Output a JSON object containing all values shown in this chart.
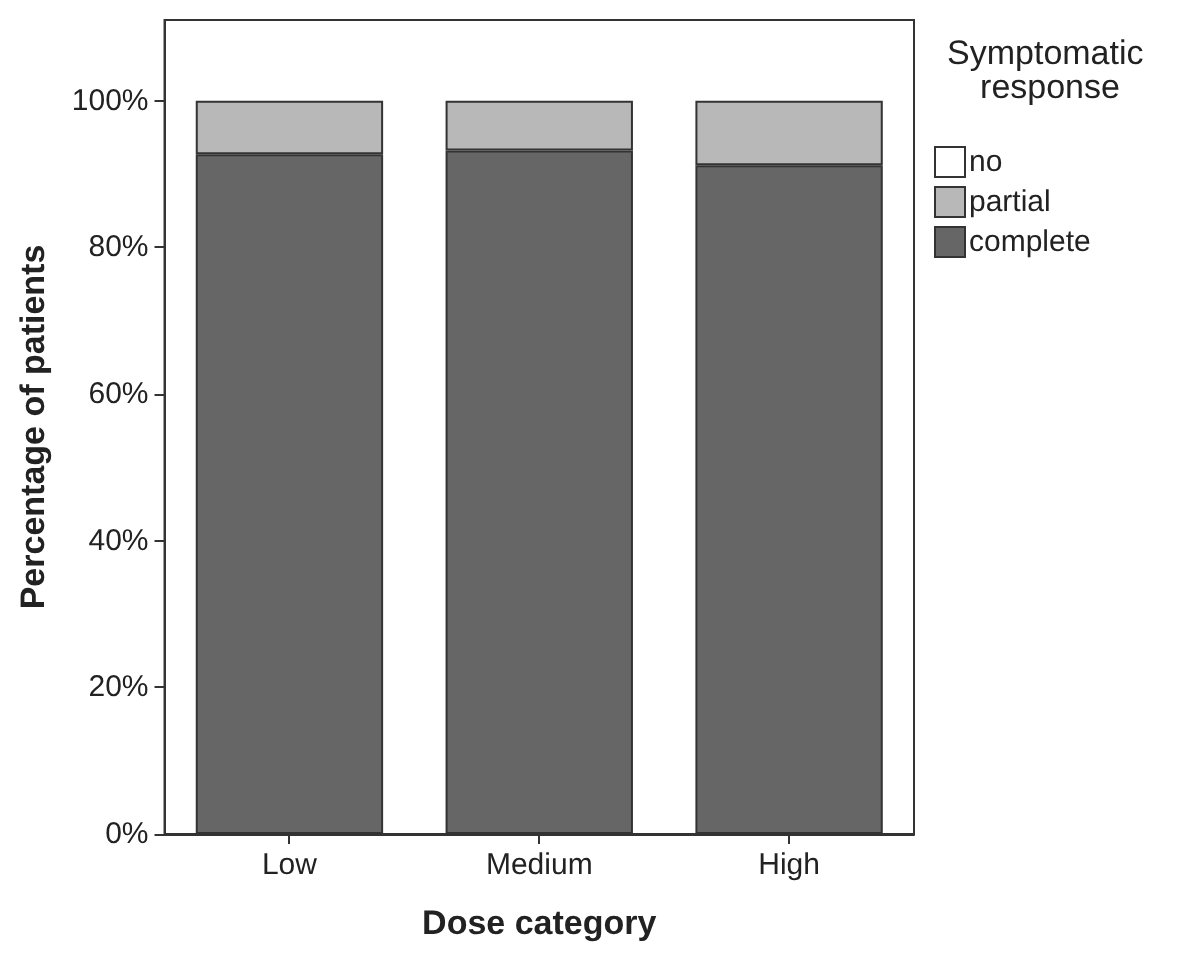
{
  "chart_data": {
    "type": "bar",
    "stacked": true,
    "xlabel": "Dose category",
    "ylabel": "Percentage of patients",
    "legend_title": "Symptomatic response",
    "categories": [
      "Low",
      "Medium",
      "High"
    ],
    "series": [
      {
        "name": "complete",
        "color": "#666666",
        "values": [
          92.7,
          93.2,
          91.2
        ]
      },
      {
        "name": "partial",
        "color": "#b8b8b8",
        "values": [
          7.3,
          6.8,
          8.8
        ]
      },
      {
        "name": "no",
        "color": "#ffffff",
        "values": [
          0,
          0,
          0
        ]
      }
    ],
    "ylim": [
      0,
      111
    ],
    "yticks": [
      {
        "value": 0,
        "label": "0%"
      },
      {
        "value": 20,
        "label": "20%"
      },
      {
        "value": 40,
        "label": "40%"
      },
      {
        "value": 60,
        "label": "60%"
      },
      {
        "value": 80,
        "label": "80%"
      },
      {
        "value": 100,
        "label": "100%"
      }
    ],
    "grid": false,
    "legend": "right"
  }
}
